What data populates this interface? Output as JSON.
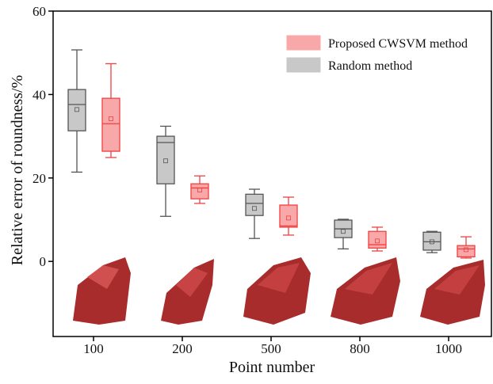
{
  "chart_data": {
    "type": "box",
    "x_label": "Point number",
    "y_label": "Relative error of roundness/%",
    "categories": [
      "100",
      "200",
      "500",
      "800",
      "1000"
    ],
    "ylim": [
      -18,
      60
    ],
    "yticks": [
      0,
      20,
      40,
      60
    ],
    "legend_position": "upper right",
    "series": [
      {
        "name": "Random  method",
        "color": "#555555",
        "fill": "#c8c8c8",
        "whisker_low": [
          21.4,
          10.8,
          5.5,
          3.0,
          2.1
        ],
        "q1": [
          31.3,
          18.6,
          11.0,
          5.7,
          2.7
        ],
        "median": [
          37.6,
          28.5,
          13.9,
          7.8,
          4.7
        ],
        "q3": [
          41.2,
          30.0,
          16.1,
          9.9,
          7.0
        ],
        "whisker_high": [
          50.7,
          32.4,
          17.3,
          10.1,
          7.2
        ],
        "mean": [
          36.4,
          24.1,
          12.7,
          7.2,
          4.7
        ]
      },
      {
        "name": "Proposed CWSVM method",
        "color": "#f04040",
        "fill": "#f8a8a8",
        "whisker_low": [
          24.9,
          13.9,
          6.3,
          2.5,
          0.8
        ],
        "q1": [
          26.4,
          15.0,
          8.2,
          3.2,
          1.1
        ],
        "median": [
          33.0,
          17.6,
          8.5,
          4.0,
          3.0
        ],
        "q3": [
          39.1,
          18.6,
          13.5,
          7.2,
          3.8
        ],
        "whisker_high": [
          47.4,
          20.5,
          15.4,
          8.2,
          5.9
        ],
        "mean": [
          34.2,
          17.1,
          10.4,
          4.9,
          2.8
        ]
      }
    ]
  }
}
